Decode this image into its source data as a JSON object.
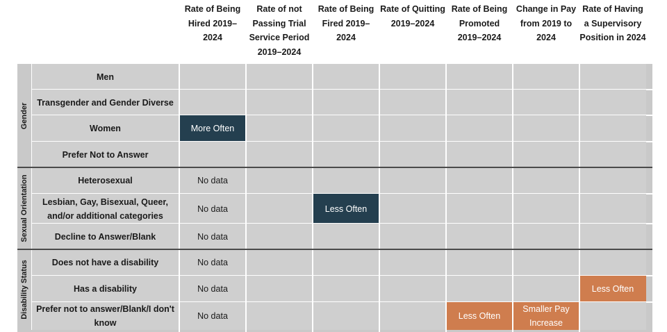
{
  "chart_data": {
    "type": "table",
    "title": "",
    "columns": [
      "Rate of Being Hired 2019–2024",
      "Rate of not Passing Trial Service Period 2019–2024",
      "Rate of Being Fired 2019–2024",
      "Rate of Quitting 2019–2024",
      "Rate of Being Promoted 2019–2024",
      "Change in Pay from 2019 to 2024",
      "Rate of Having a Supervisory Position in 2024"
    ],
    "groups": [
      {
        "name": "Gender",
        "rows": [
          {
            "label": "Men",
            "cells": [
              "",
              "",
              "",
              "",
              "",
              "",
              ""
            ]
          },
          {
            "label": "Transgender and Gender Diverse",
            "cells": [
              "",
              "",
              "",
              "",
              "",
              "",
              ""
            ]
          },
          {
            "label": "Women",
            "cells": [
              "More Often",
              "",
              "",
              "",
              "",
              "",
              ""
            ]
          },
          {
            "label": "Prefer Not to Answer",
            "cells": [
              "",
              "",
              "",
              "",
              "",
              "",
              ""
            ]
          }
        ]
      },
      {
        "name": "Sexual Orientation",
        "rows": [
          {
            "label": "Heterosexual",
            "cells": [
              "No data",
              "",
              "",
              "",
              "",
              "",
              ""
            ]
          },
          {
            "label": "Lesbian, Gay, Bisexual, Queer, and/or additional categories",
            "cells": [
              "No data",
              "",
              "Less Often",
              "",
              "",
              "",
              ""
            ]
          },
          {
            "label": "Decline to Answer/Blank",
            "cells": [
              "No data",
              "",
              "",
              "",
              "",
              "",
              ""
            ]
          }
        ]
      },
      {
        "name": "Disability Status",
        "rows": [
          {
            "label": "Does not have a disability",
            "cells": [
              "No data",
              "",
              "",
              "",
              "",
              "",
              ""
            ]
          },
          {
            "label": "Has a disability",
            "cells": [
              "No data",
              "",
              "",
              "",
              "",
              "",
              "Less Often"
            ]
          },
          {
            "label": "Prefer not to answer/Blank/I don't know",
            "cells": [
              "No data",
              "",
              "",
              "",
              "Less Often",
              "Smaller Pay Increase",
              ""
            ]
          }
        ]
      }
    ],
    "colors": {
      "favorable": "#243f4f",
      "unfavorable": "#cf7d4e",
      "neutral": "#cfcfcf",
      "text_on_fill": "#ffffff"
    },
    "cell_styles": {
      "More Often": "favorable",
      "Less Often": {
        "Rate of Being Fired 2019–2024": "favorable",
        "default": "unfavorable"
      },
      "Smaller Pay Increase": "unfavorable"
    }
  }
}
